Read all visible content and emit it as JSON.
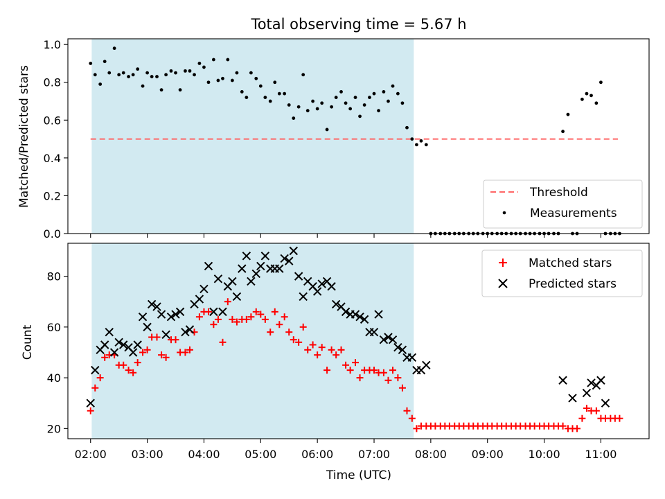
{
  "figure": {
    "title": "Total observing time = 5.67 h",
    "highlight_color": "#add8e6"
  },
  "chart_data": [
    {
      "type": "scatter",
      "panel": "top",
      "ylabel": "Matched/Predicted stars",
      "xlabel": "",
      "ylim": [
        0.0,
        1.03
      ],
      "yticks": [
        0.0,
        0.2,
        0.4,
        0.6,
        0.8,
        1.0
      ],
      "ytick_labels": [
        "0.0",
        "0.2",
        "0.4",
        "0.6",
        "0.8",
        "1.0"
      ],
      "highlight_span": [
        2.02,
        7.7
      ],
      "threshold": {
        "name": "Threshold",
        "value": 0.5,
        "x_range": [
          2.0,
          11.3
        ],
        "color": "#ff6666"
      },
      "legend": {
        "placement": "lower-right",
        "entries": [
          "Threshold",
          "Measurements"
        ]
      },
      "series": [
        {
          "name": "Measurements",
          "color": "#000000",
          "x": [
            2.0,
            2.08,
            2.17,
            2.25,
            2.33,
            2.42,
            2.5,
            2.58,
            2.67,
            2.75,
            2.83,
            2.92,
            3.0,
            3.08,
            3.17,
            3.25,
            3.33,
            3.42,
            3.5,
            3.58,
            3.67,
            3.75,
            3.83,
            3.92,
            4.0,
            4.08,
            4.17,
            4.25,
            4.33,
            4.42,
            4.5,
            4.58,
            4.67,
            4.75,
            4.83,
            4.92,
            5.0,
            5.08,
            5.17,
            5.25,
            5.33,
            5.42,
            5.5,
            5.58,
            5.67,
            5.75,
            5.83,
            5.92,
            6.0,
            6.08,
            6.17,
            6.25,
            6.33,
            6.42,
            6.5,
            6.58,
            6.67,
            6.75,
            6.83,
            6.92,
            7.0,
            7.08,
            7.17,
            7.25,
            7.33,
            7.42,
            7.5,
            7.58,
            7.67,
            7.75,
            7.83,
            7.92,
            8.0,
            8.08,
            8.17,
            8.25,
            8.33,
            8.42,
            8.5,
            8.58,
            8.67,
            8.75,
            8.83,
            8.92,
            9.0,
            9.08,
            9.17,
            9.25,
            9.33,
            9.42,
            9.5,
            9.58,
            9.67,
            9.75,
            9.83,
            9.92,
            10.0,
            10.08,
            10.17,
            10.25,
            10.33,
            10.42,
            10.5,
            10.58,
            10.67,
            10.75,
            10.83,
            10.92,
            11.0,
            11.08,
            11.17,
            11.25,
            11.33
          ],
          "y": [
            0.9,
            0.84,
            0.79,
            0.91,
            0.85,
            0.98,
            0.84,
            0.85,
            0.83,
            0.84,
            0.87,
            0.78,
            0.85,
            0.83,
            0.83,
            0.76,
            0.84,
            0.86,
            0.85,
            0.76,
            0.86,
            0.86,
            0.84,
            0.9,
            0.88,
            0.8,
            0.92,
            0.81,
            0.82,
            0.92,
            0.81,
            0.85,
            0.75,
            0.72,
            0.85,
            0.82,
            0.78,
            0.72,
            0.7,
            0.8,
            0.74,
            0.74,
            0.68,
            0.61,
            0.67,
            0.84,
            0.65,
            0.7,
            0.66,
            0.69,
            0.55,
            0.67,
            0.72,
            0.75,
            0.69,
            0.66,
            0.72,
            0.62,
            0.68,
            0.72,
            0.74,
            0.65,
            0.75,
            0.7,
            0.78,
            0.74,
            0.69,
            0.56,
            0.5,
            0.47,
            0.49,
            0.47,
            0.0,
            0.0,
            0.0,
            0.0,
            0.0,
            0.0,
            0.0,
            0.0,
            0.0,
            0.0,
            0.0,
            0.0,
            0.0,
            0.0,
            0.0,
            0.0,
            0.0,
            0.0,
            0.0,
            0.0,
            0.0,
            0.0,
            0.0,
            0.0,
            0.0,
            0.0,
            0.0,
            0.0,
            0.54,
            0.63,
            0.0,
            0.0,
            0.71,
            0.74,
            0.73,
            0.69,
            0.8,
            0.0,
            0.0,
            0.0,
            0.0
          ]
        }
      ]
    },
    {
      "type": "scatter",
      "panel": "bottom",
      "ylabel": "Count",
      "xlabel": "Time (UTC)",
      "xlim": [
        1.6,
        11.85
      ],
      "xticks": [
        2,
        3,
        4,
        5,
        6,
        7,
        8,
        9,
        10,
        11
      ],
      "xtick_labels": [
        "02:00",
        "03:00",
        "04:00",
        "05:00",
        "06:00",
        "07:00",
        "08:00",
        "09:00",
        "10:00",
        "11:00"
      ],
      "ylim": [
        16,
        93
      ],
      "yticks": [
        20,
        40,
        60,
        80
      ],
      "ytick_labels": [
        "20",
        "40",
        "60",
        "80"
      ],
      "highlight_span": [
        2.02,
        7.7
      ],
      "legend": {
        "placement": "top-right",
        "entries": [
          "Matched stars",
          "Predicted stars"
        ]
      },
      "series": [
        {
          "name": "Matched stars",
          "marker": "plus",
          "color": "#ff0000",
          "x": [
            2.0,
            2.08,
            2.17,
            2.25,
            2.33,
            2.42,
            2.5,
            2.58,
            2.67,
            2.75,
            2.83,
            2.92,
            3.0,
            3.08,
            3.17,
            3.25,
            3.33,
            3.42,
            3.5,
            3.58,
            3.67,
            3.75,
            3.83,
            3.92,
            4.0,
            4.08,
            4.17,
            4.25,
            4.33,
            4.42,
            4.5,
            4.58,
            4.67,
            4.75,
            4.83,
            4.92,
            5.0,
            5.08,
            5.17,
            5.25,
            5.33,
            5.42,
            5.5,
            5.58,
            5.67,
            5.75,
            5.83,
            5.92,
            6.0,
            6.08,
            6.17,
            6.25,
            6.33,
            6.42,
            6.5,
            6.58,
            6.67,
            6.75,
            6.83,
            6.92,
            7.0,
            7.08,
            7.17,
            7.25,
            7.33,
            7.42,
            7.5,
            7.58,
            7.67,
            7.75,
            7.83,
            7.92,
            8.0,
            8.08,
            8.17,
            8.25,
            8.33,
            8.42,
            8.5,
            8.58,
            8.67,
            8.75,
            8.83,
            8.92,
            9.0,
            9.08,
            9.17,
            9.25,
            9.33,
            9.42,
            9.5,
            9.58,
            9.67,
            9.75,
            9.83,
            9.92,
            10.0,
            10.08,
            10.17,
            10.25,
            10.33,
            10.42,
            10.5,
            10.58,
            10.67,
            10.75,
            10.83,
            10.92,
            11.0,
            11.08,
            11.17,
            11.25,
            11.33
          ],
          "y": [
            27,
            36,
            40,
            48,
            49,
            49,
            45,
            45,
            43,
            42,
            46,
            50,
            51,
            56,
            56,
            49,
            48,
            55,
            55,
            50,
            50,
            51,
            58,
            64,
            66,
            66,
            61,
            63,
            54,
            70,
            63,
            62,
            63,
            63,
            64,
            66,
            65,
            63,
            58,
            66,
            61,
            64,
            58,
            55,
            54,
            60,
            51,
            53,
            49,
            52,
            43,
            51,
            49,
            51,
            45,
            43,
            46,
            40,
            43,
            43,
            43,
            42,
            42,
            39,
            43,
            40,
            36,
            27,
            24,
            20,
            21,
            21,
            21,
            21,
            21,
            21,
            21,
            21,
            21,
            21,
            21,
            21,
            21,
            21,
            21,
            21,
            21,
            21,
            21,
            21,
            21,
            21,
            21,
            21,
            21,
            21,
            21,
            21,
            21,
            21,
            21,
            20,
            20,
            20,
            24,
            28,
            27,
            27,
            24,
            24,
            24,
            24,
            24
          ]
        },
        {
          "name": "Predicted stars",
          "marker": "x",
          "color": "#000000",
          "x": [
            2.0,
            2.08,
            2.17,
            2.25,
            2.33,
            2.42,
            2.5,
            2.58,
            2.67,
            2.75,
            2.83,
            2.92,
            3.0,
            3.08,
            3.17,
            3.25,
            3.33,
            3.42,
            3.5,
            3.58,
            3.67,
            3.75,
            3.83,
            3.92,
            4.0,
            4.08,
            4.17,
            4.25,
            4.33,
            4.42,
            4.5,
            4.58,
            4.67,
            4.75,
            4.83,
            4.92,
            5.0,
            5.08,
            5.17,
            5.25,
            5.33,
            5.42,
            5.5,
            5.58,
            5.67,
            5.75,
            5.83,
            5.92,
            6.0,
            6.08,
            6.17,
            6.25,
            6.33,
            6.42,
            6.5,
            6.58,
            6.67,
            6.75,
            6.83,
            6.92,
            7.0,
            7.08,
            7.17,
            7.25,
            7.33,
            7.42,
            7.5,
            7.58,
            7.67,
            7.75,
            7.83,
            7.92,
            10.33,
            10.5,
            10.75,
            10.83,
            10.92,
            11.0,
            11.08
          ],
          "y": [
            30,
            43,
            51,
            53,
            58,
            50,
            54,
            53,
            52,
            50,
            53,
            64,
            60,
            69,
            68,
            65,
            57,
            64,
            65,
            66,
            58,
            59,
            69,
            71,
            75,
            84,
            66,
            79,
            66,
            76,
            78,
            72,
            83,
            88,
            78,
            81,
            84,
            88,
            83,
            83,
            83,
            87,
            86,
            90,
            80,
            72,
            78,
            76,
            74,
            77,
            78,
            76,
            69,
            68,
            66,
            65,
            65,
            64,
            63,
            58,
            58,
            65,
            55,
            56,
            55,
            52,
            51,
            48,
            48,
            43,
            43,
            45,
            39,
            32,
            34,
            38,
            37,
            39,
            30
          ]
        }
      ]
    }
  ]
}
